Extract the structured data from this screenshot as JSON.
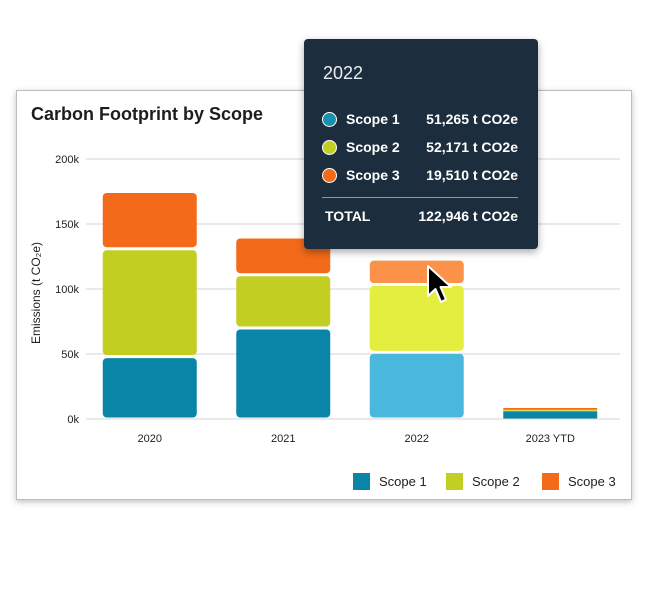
{
  "chart_data": {
    "type": "bar",
    "stacked": true,
    "title": "Carbon Footprint by Scope",
    "ylabel": "Emissions (t CO₂e)",
    "xlabel": "",
    "ylim": [
      0,
      200000
    ],
    "yticks": [
      0,
      50000,
      100000,
      150000,
      200000
    ],
    "ytick_labels": [
      "0k",
      "50k",
      "100k",
      "150k",
      "200k"
    ],
    "categories": [
      "2020",
      "2021",
      "2022",
      "2023 YTD"
    ],
    "series": [
      {
        "name": "Scope 1",
        "color": "#0a85a7",
        "values": [
          48000,
          70000,
          51265,
          6000
        ]
      },
      {
        "name": "Scope 2",
        "color": "#c2cf22",
        "values": [
          83000,
          41000,
          52171,
          1500
        ]
      },
      {
        "name": "Scope 3",
        "color": "#f36a1b",
        "values": [
          44000,
          29000,
          19510,
          1000
        ]
      }
    ],
    "highlight_index": 2,
    "highlight_colors": [
      "#4ab8dd",
      "#e3ee3e",
      "#fc9249"
    ],
    "legend_position": "bottom-right",
    "grid": true
  },
  "tooltip": {
    "year": "2022",
    "rows": [
      {
        "label": "Scope 1",
        "value": "51,265 t CO2e",
        "color": "#1b8fae"
      },
      {
        "label": "Scope 2",
        "value": "52,171 t CO2e",
        "color": "#c2cf22"
      },
      {
        "label": "Scope 3",
        "value": "19,510 t CO2e",
        "color": "#f36a1b"
      }
    ],
    "total_label": "TOTAL",
    "total_value": "122,946 t CO2e"
  },
  "cursor": {
    "icon": "arrow-cursor-icon"
  }
}
